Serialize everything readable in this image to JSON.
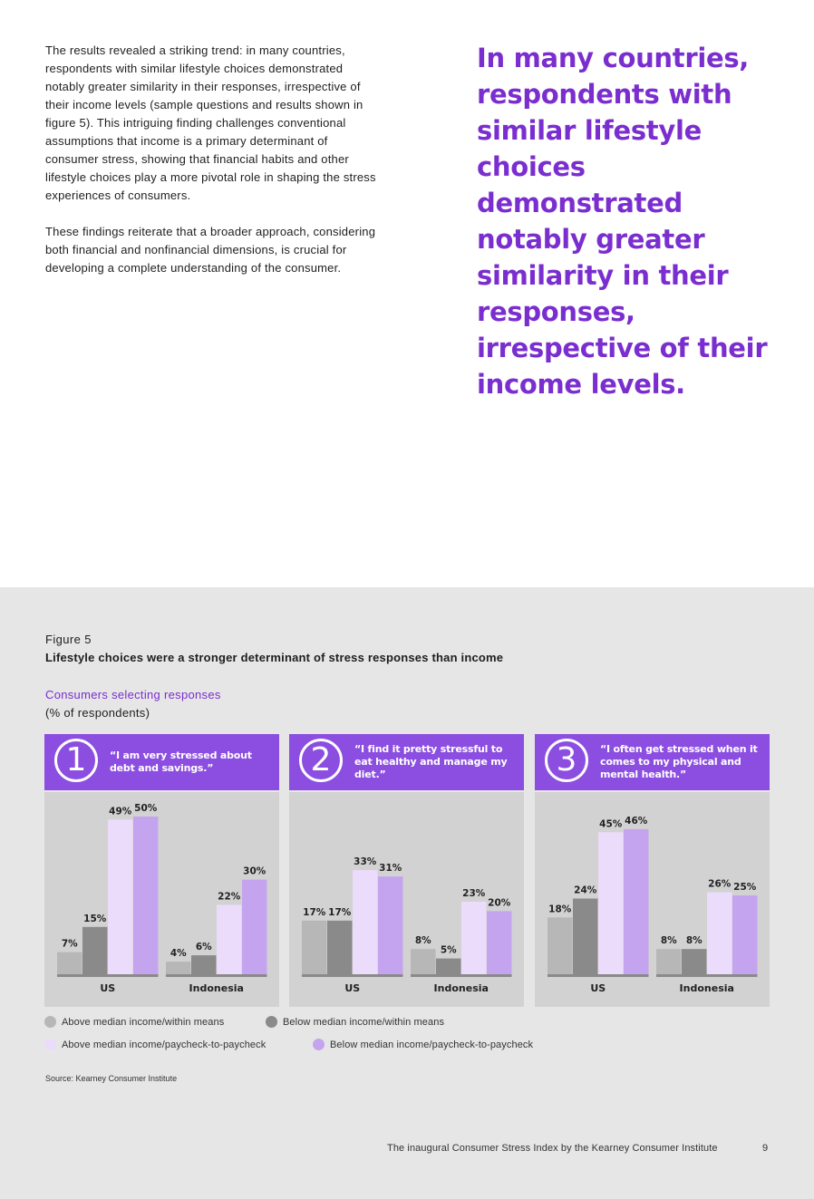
{
  "intro": {
    "paragraph1": "The results revealed a striking trend: in many countries, respondents with similar lifestyle choices demonstrated notably greater similarity in their responses, irrespective of their income levels (sample questions and results shown in figure 5). This intriguing finding challenges conventional assumptions that income is a primary determinant of consumer stress, showing that financial habits and other lifestyle choices play a more pivotal role in shaping the stress experiences of consumers.",
    "paragraph2": "These findings reiterate that a broader approach, considering both financial and nonfinancial dimensions, is crucial for developing a complete understanding of the consumer."
  },
  "pull_quote": "In many countries, respondents with similar lifestyle choices demonstrated notably greater similarity in their responses, irrespective of their income levels.",
  "figure": {
    "label": "Figure 5",
    "title": "Lifestyle choices were a stronger determinant of stress responses than income",
    "subtitle": "Consumers selecting responses",
    "unit": "(% of respondents)",
    "source": "Source: Kearney Consumer Institute"
  },
  "colors": {
    "accent": "#7b2ecf",
    "panel_header": "#8c4ee0",
    "series": [
      "#b7b7b7",
      "#8a8a8a",
      "#ecdcfb",
      "#c5a4ef"
    ]
  },
  "chart_data": [
    {
      "type": "bar",
      "number": "1",
      "title": "“I am very stressed about debt and savings.”",
      "categories": [
        "US",
        "Indonesia"
      ],
      "ylim": [
        0,
        50
      ],
      "series": [
        {
          "name": "Above median income/within means",
          "values": [
            7,
            4
          ]
        },
        {
          "name": "Below median income/within means",
          "values": [
            15,
            6
          ]
        },
        {
          "name": "Above median income/paycheck-to-paycheck",
          "values": [
            49,
            22
          ]
        },
        {
          "name": "Below median income/paycheck-to-paycheck",
          "values": [
            50,
            30
          ]
        }
      ]
    },
    {
      "type": "bar",
      "number": "2",
      "title": "“I find it pretty stressful to eat healthy and manage my diet.”",
      "categories": [
        "US",
        "Indonesia"
      ],
      "ylim": [
        0,
        50
      ],
      "series": [
        {
          "name": "Above median income/within means",
          "values": [
            17,
            8
          ]
        },
        {
          "name": "Below median income/within means",
          "values": [
            17,
            5
          ]
        },
        {
          "name": "Above median income/paycheck-to-paycheck",
          "values": [
            33,
            23
          ]
        },
        {
          "name": "Below median income/paycheck-to-paycheck",
          "values": [
            31,
            20
          ]
        }
      ]
    },
    {
      "type": "bar",
      "number": "3",
      "title": "“I often get stressed when it comes to my physical and mental health.”",
      "categories": [
        "US",
        "Indonesia"
      ],
      "ylim": [
        0,
        50
      ],
      "series": [
        {
          "name": "Above median income/within means",
          "values": [
            18,
            8
          ]
        },
        {
          "name": "Below median income/within means",
          "values": [
            24,
            8
          ]
        },
        {
          "name": "Above median income/paycheck-to-paycheck",
          "values": [
            45,
            26
          ]
        },
        {
          "name": "Below median income/paycheck-to-paycheck",
          "values": [
            46,
            25
          ]
        }
      ]
    }
  ],
  "legend": [
    "Above median income/within means",
    "Below median income/within means",
    "Above median income/paycheck-to-paycheck",
    "Below median income/paycheck-to-paycheck"
  ],
  "footer": {
    "text": "The inaugural Consumer Stress Index by the Kearney Consumer Institute",
    "page_number": "9"
  }
}
